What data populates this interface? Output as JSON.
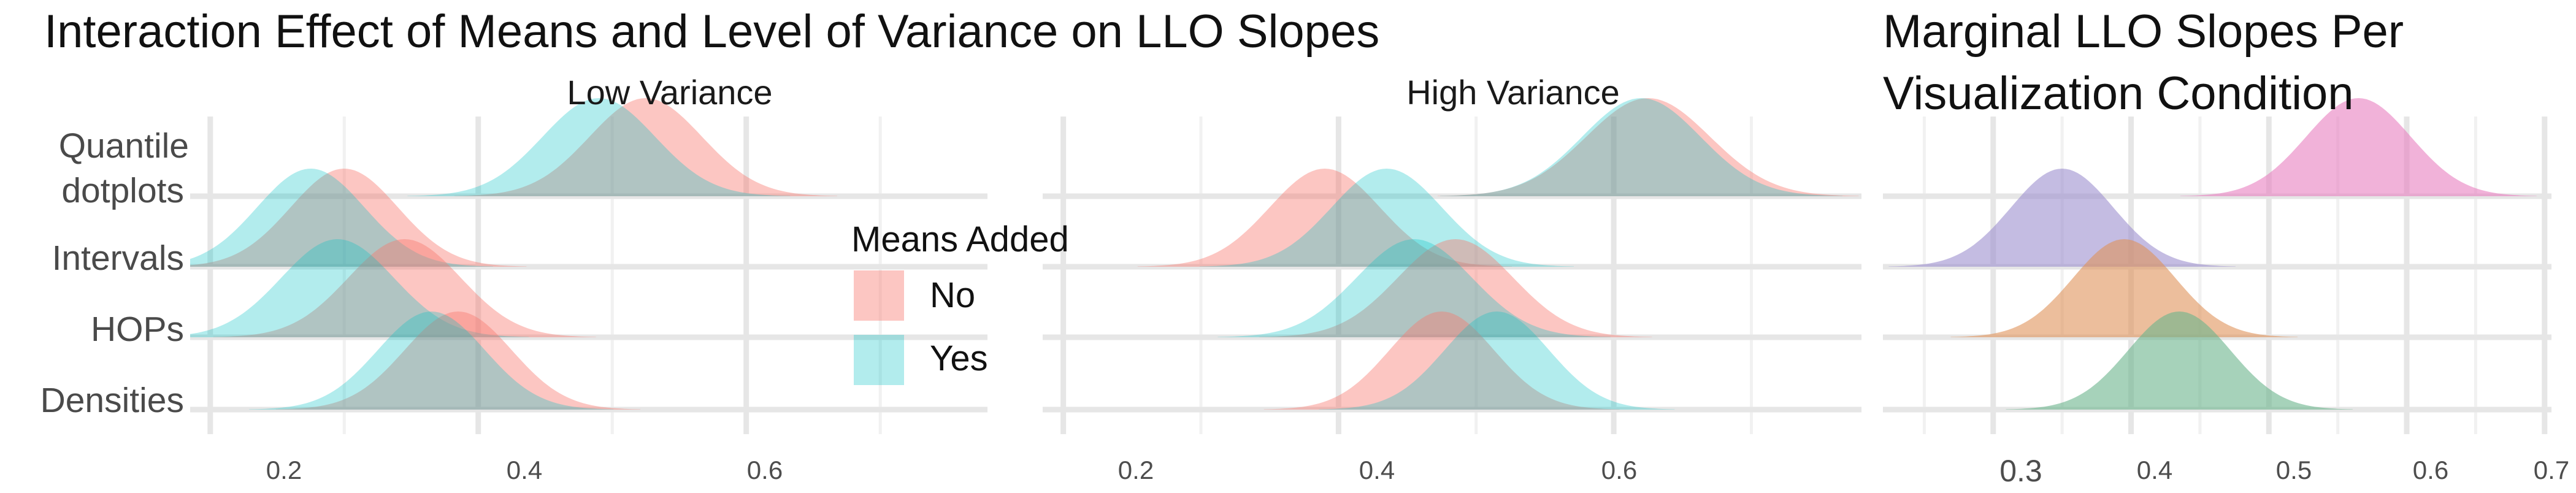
{
  "chart_data": [
    {
      "type": "ridgeline",
      "title": "Interaction Effect of Means and Level of Variance on LLO Slopes",
      "categories": [
        "Quantile dotplots",
        "Intervals",
        "HOPs",
        "Densities"
      ],
      "category_lines": [
        [
          "Quantile",
          "dotplots"
        ],
        [
          "Intervals"
        ],
        [
          "HOPs"
        ],
        [
          "Densities"
        ]
      ],
      "facets": [
        "Low Variance",
        "High Variance"
      ],
      "xlim": [
        0.185,
        0.78
      ],
      "xticks": [
        "0.2",
        "0.4",
        "0.6"
      ],
      "grid": true,
      "legend": {
        "title": "Means Added",
        "position": "right",
        "entries": [
          {
            "label": "No",
            "color": "#F8766D"
          },
          {
            "label": "Yes",
            "color": "#00BFC4"
          }
        ]
      },
      "series": [
        {
          "facet": "Low Variance",
          "means": "No",
          "category": "Quantile dotplots",
          "mode": 0.525,
          "sd": 0.042
        },
        {
          "facet": "Low Variance",
          "means": "Yes",
          "category": "Quantile dotplots",
          "mode": 0.49,
          "sd": 0.042
        },
        {
          "facet": "Low Variance",
          "means": "No",
          "category": "Intervals",
          "mode": 0.3,
          "sd": 0.04
        },
        {
          "facet": "Low Variance",
          "means": "Yes",
          "category": "Intervals",
          "mode": 0.275,
          "sd": 0.04
        },
        {
          "facet": "Low Variance",
          "means": "No",
          "category": "HOPs",
          "mode": 0.345,
          "sd": 0.042
        },
        {
          "facet": "Low Variance",
          "means": "Yes",
          "category": "HOPs",
          "mode": 0.295,
          "sd": 0.042
        },
        {
          "facet": "Low Variance",
          "means": "No",
          "category": "Densities",
          "mode": 0.385,
          "sd": 0.04
        },
        {
          "facet": "Low Variance",
          "means": "Yes",
          "category": "Densities",
          "mode": 0.365,
          "sd": 0.04
        },
        {
          "facet": "High Variance",
          "means": "No",
          "category": "Quantile dotplots",
          "mode": 0.625,
          "sd": 0.045
        },
        {
          "facet": "High Variance",
          "means": "Yes",
          "category": "Quantile dotplots",
          "mode": 0.62,
          "sd": 0.043
        },
        {
          "facet": "High Variance",
          "means": "No",
          "category": "Intervals",
          "mode": 0.39,
          "sd": 0.04
        },
        {
          "facet": "High Variance",
          "means": "Yes",
          "category": "Intervals",
          "mode": 0.435,
          "sd": 0.04
        },
        {
          "facet": "High Variance",
          "means": "No",
          "category": "HOPs",
          "mode": 0.485,
          "sd": 0.042
        },
        {
          "facet": "High Variance",
          "means": "Yes",
          "category": "HOPs",
          "mode": 0.455,
          "sd": 0.042
        },
        {
          "facet": "High Variance",
          "means": "No",
          "category": "Densities",
          "mode": 0.475,
          "sd": 0.038
        },
        {
          "facet": "High Variance",
          "means": "Yes",
          "category": "Densities",
          "mode": 0.515,
          "sd": 0.038
        }
      ]
    },
    {
      "type": "ridgeline",
      "title": "Marginal LLO Slopes Per Visualization Condition",
      "title_lines": [
        "Marginal LLO Slopes Per",
        "Visualization Condition"
      ],
      "categories": [
        "Quantile dotplots",
        "Intervals",
        "HOPs",
        "Densities"
      ],
      "xlim": [
        0.22,
        0.705
      ],
      "xticks": [
        "0.3",
        "0.4",
        "0.5",
        "0.6",
        "0.7"
      ],
      "grid": true,
      "series": [
        {
          "category": "Quantile dotplots",
          "mode": 0.565,
          "sd": 0.038,
          "color": "#E77FBF"
        },
        {
          "category": "Intervals",
          "mode": 0.35,
          "sd": 0.037,
          "color": "#9C90CF"
        },
        {
          "category": "HOPs",
          "mode": 0.395,
          "sd": 0.037,
          "color": "#E0935A"
        },
        {
          "category": "Densities",
          "mode": 0.435,
          "sd": 0.037,
          "color": "#6AB48C"
        }
      ]
    }
  ]
}
